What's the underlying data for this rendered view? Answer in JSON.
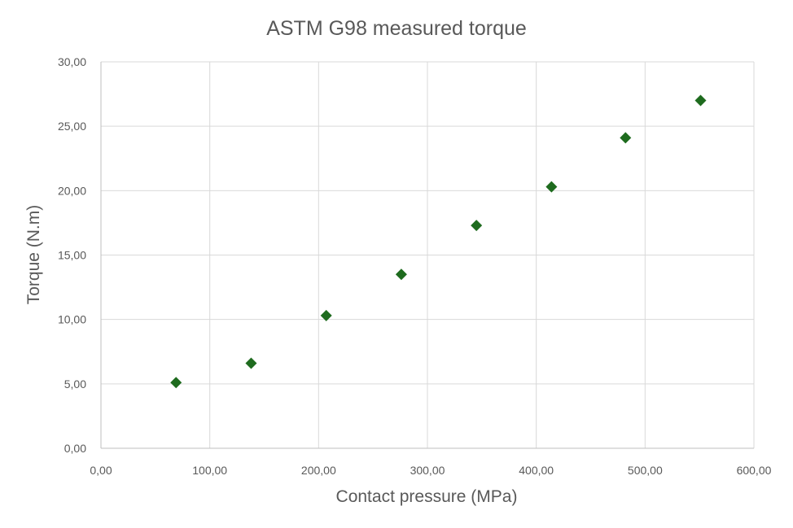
{
  "chart_data": {
    "type": "scatter",
    "title": "ASTM G98 measured torque",
    "xlabel": "Contact pressure (MPa)",
    "ylabel": "Torque (N.m)",
    "xlim": [
      0,
      600
    ],
    "ylim": [
      0,
      30
    ],
    "xticks": [
      0,
      100,
      200,
      300,
      400,
      500,
      600
    ],
    "yticks": [
      0,
      5,
      10,
      15,
      20,
      25,
      30
    ],
    "xtick_labels": [
      "0,00",
      "100,00",
      "200,00",
      "300,00",
      "400,00",
      "500,00",
      "600,00"
    ],
    "ytick_labels": [
      "0,00",
      "5,00",
      "10,00",
      "15,00",
      "20,00",
      "25,00",
      "30,00"
    ],
    "grid": true,
    "marker": "diamond",
    "marker_color": "#1e6b1e",
    "series": [
      {
        "x": [
          69,
          138,
          207,
          276,
          345,
          414,
          482,
          551
        ],
        "y": [
          5.1,
          6.6,
          10.3,
          13.5,
          17.3,
          20.3,
          24.1,
          27.0
        ]
      }
    ]
  }
}
